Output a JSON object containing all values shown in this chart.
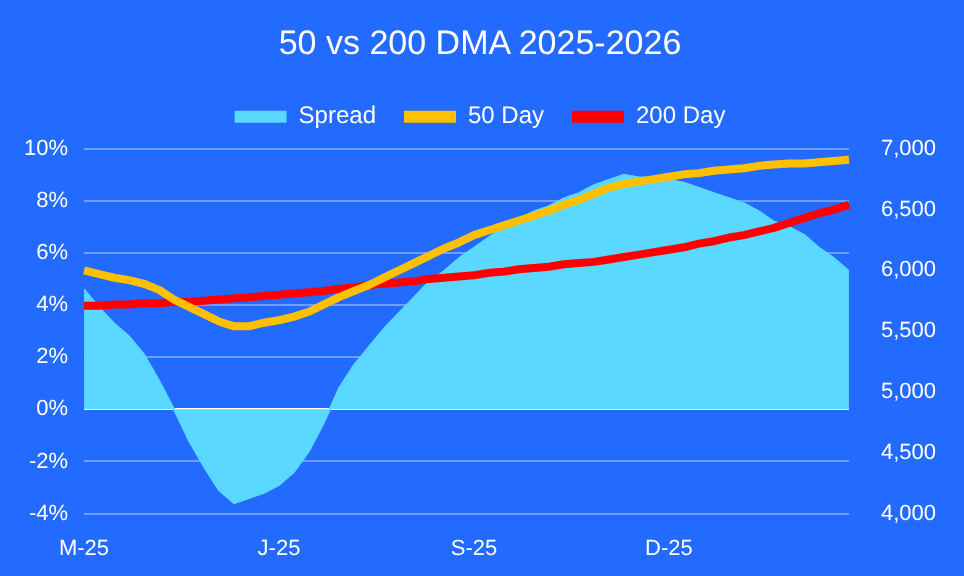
{
  "chart_data": {
    "type": "line",
    "title": "50 vs 200 DMA 2025-2026",
    "categories": [
      "M-25",
      null,
      null,
      null,
      null,
      null,
      null,
      null,
      null,
      null,
      null,
      null,
      null,
      "J-25",
      null,
      null,
      null,
      null,
      null,
      null,
      null,
      null,
      null,
      null,
      null,
      null,
      "S-25",
      null,
      null,
      null,
      null,
      null,
      null,
      null,
      null,
      null,
      null,
      null,
      null,
      "D-25",
      null,
      null,
      null,
      null,
      null,
      null,
      null,
      null,
      null,
      null,
      null,
      null
    ],
    "series": [
      {
        "name": "Spread",
        "type": "area",
        "color": "#5ad8ff",
        "values": [
          4.6,
          3.9,
          3.3,
          2.8,
          2.1,
          1.1,
          0.0,
          -1.2,
          -2.2,
          -3.1,
          -3.6,
          -3.4,
          -3.2,
          -2.9,
          -2.4,
          -1.6,
          -0.5,
          0.8,
          1.7,
          2.4,
          3.1,
          3.7,
          4.3,
          4.9,
          5.3,
          5.8,
          6.2,
          6.6,
          7.0,
          7.3,
          7.6,
          7.8,
          8.1,
          8.3,
          8.6,
          8.8,
          9.0,
          8.9,
          8.9,
          8.8,
          8.7,
          8.5,
          8.3,
          8.1,
          7.9,
          7.6,
          7.2,
          7.0,
          6.7,
          6.2,
          5.8,
          5.3
        ]
      },
      {
        "name": "50 Day",
        "axis": "y2",
        "color": "#ffc000",
        "values": [
          6000,
          5970,
          5940,
          5920,
          5890,
          5840,
          5760,
          5700,
          5640,
          5580,
          5540,
          5540,
          5570,
          5590,
          5620,
          5660,
          5720,
          5780,
          5830,
          5880,
          5940,
          6000,
          6060,
          6120,
          6180,
          6230,
          6290,
          6330,
          6370,
          6410,
          6450,
          6490,
          6540,
          6580,
          6630,
          6680,
          6710,
          6730,
          6750,
          6770,
          6790,
          6800,
          6820,
          6830,
          6840,
          6860,
          6870,
          6880,
          6880,
          6890,
          6900,
          6910
        ]
      },
      {
        "name": "200 Day",
        "axis": "y2",
        "color": "#ff0000",
        "values": [
          5710,
          5710,
          5720,
          5720,
          5730,
          5730,
          5740,
          5740,
          5750,
          5760,
          5770,
          5780,
          5790,
          5800,
          5810,
          5820,
          5830,
          5850,
          5860,
          5880,
          5890,
          5900,
          5910,
          5930,
          5940,
          5950,
          5960,
          5980,
          5990,
          6010,
          6020,
          6030,
          6050,
          6060,
          6070,
          6090,
          6110,
          6130,
          6150,
          6170,
          6190,
          6220,
          6240,
          6270,
          6290,
          6320,
          6350,
          6390,
          6430,
          6470,
          6500,
          6540
        ]
      }
    ],
    "ylim": [
      -4,
      10
    ],
    "yticks": [
      {
        "value": -4,
        "label": "-4%"
      },
      {
        "value": -2,
        "label": "-2%"
      },
      {
        "value": 0,
        "label": "0%"
      },
      {
        "value": 2,
        "label": "2%"
      },
      {
        "value": 4,
        "label": "4%"
      },
      {
        "value": 6,
        "label": "6%"
      },
      {
        "value": 8,
        "label": "8%"
      },
      {
        "value": 10,
        "label": "10%"
      }
    ],
    "y2lim": [
      4000,
      7000
    ],
    "y2ticks": [
      {
        "value": 4000,
        "label": "4,000"
      },
      {
        "value": 4500,
        "label": "4,500"
      },
      {
        "value": 5000,
        "label": "5,000"
      },
      {
        "value": 5500,
        "label": "5,500"
      },
      {
        "value": 6000,
        "label": "6,000"
      },
      {
        "value": 6500,
        "label": "6,500"
      },
      {
        "value": 7000,
        "label": "7,000"
      }
    ],
    "grid": "y",
    "legend": "top",
    "marker": "none",
    "line_style": "solid"
  }
}
